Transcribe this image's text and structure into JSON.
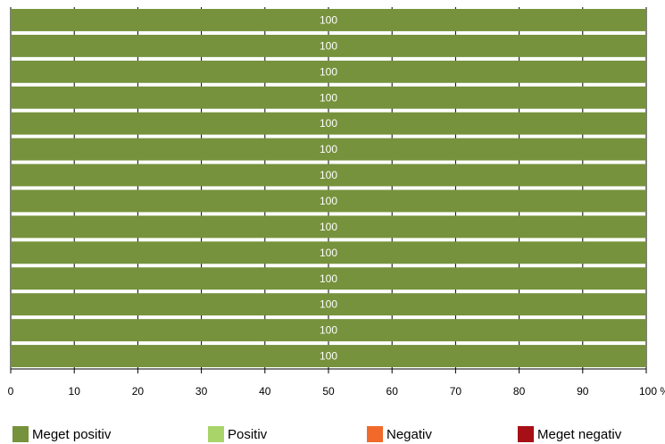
{
  "chart_data": {
    "type": "bar",
    "orientation": "horizontal",
    "stacked": true,
    "categories": [
      "",
      "",
      "",
      "",
      "",
      "",
      "",
      "",
      "",
      "",
      "",
      "",
      "",
      ""
    ],
    "series": [
      {
        "name": "Meget positiv",
        "color": "#76923c",
        "values": [
          100,
          100,
          100,
          100,
          100,
          100,
          100,
          100,
          100,
          100,
          100,
          100,
          100,
          100
        ]
      },
      {
        "name": "Positiv",
        "color": "#a9d46a",
        "values": [
          0,
          0,
          0,
          0,
          0,
          0,
          0,
          0,
          0,
          0,
          0,
          0,
          0,
          0
        ]
      },
      {
        "name": "Negativ",
        "color": "#f16a2b",
        "values": [
          0,
          0,
          0,
          0,
          0,
          0,
          0,
          0,
          0,
          0,
          0,
          0,
          0,
          0
        ]
      },
      {
        "name": "Meget negativ",
        "color": "#a50f15",
        "values": [
          0,
          0,
          0,
          0,
          0,
          0,
          0,
          0,
          0,
          0,
          0,
          0,
          0,
          0
        ]
      }
    ],
    "data_labels": [
      "100",
      "100",
      "100",
      "100",
      "100",
      "100",
      "100",
      "100",
      "100",
      "100",
      "100",
      "100",
      "100",
      "100"
    ],
    "xlim": [
      0,
      100
    ],
    "xticks": [
      0,
      10,
      20,
      30,
      40,
      50,
      60,
      70,
      80,
      90,
      100
    ],
    "xtick_labels": [
      "0",
      "10",
      "20",
      "30",
      "40",
      "50",
      "60",
      "70",
      "80",
      "90",
      "100 %"
    ],
    "grid": true,
    "legend_position": "bottom"
  }
}
